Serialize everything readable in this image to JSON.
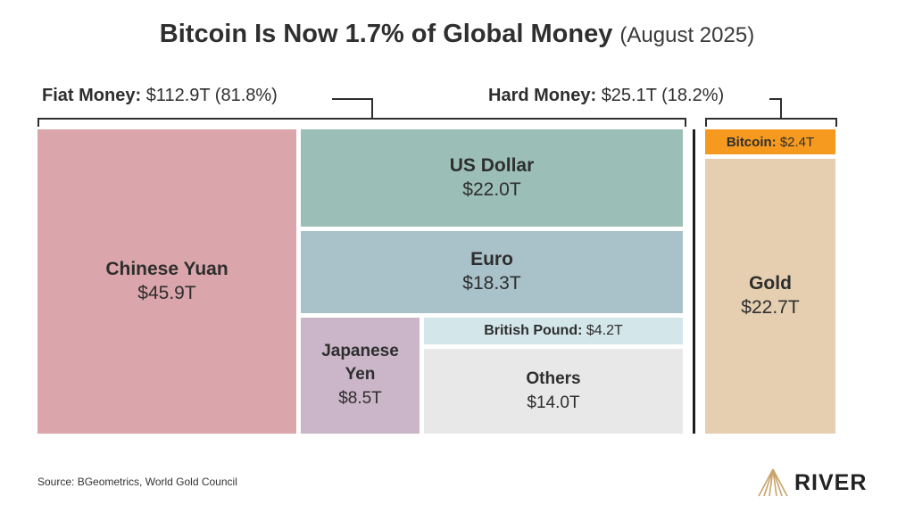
{
  "title": {
    "main": "Bitcoin Is Now 1.7% of Global Money",
    "date": "(August 2025)"
  },
  "groups": {
    "fiat": {
      "label": "Fiat Money:",
      "value": "$112.9T (81.8%)"
    },
    "hard": {
      "label": "Hard Money:",
      "value": "$25.1T (18.2%)"
    }
  },
  "chart_data": {
    "type": "treemap",
    "title": "Bitcoin Is Now 1.7% of Global Money",
    "subtitle": "(August 2025)",
    "unit": "trillion USD",
    "groups": [
      {
        "name": "Fiat Money",
        "total": 112.9,
        "share_pct": 81.8,
        "items": [
          {
            "name": "Chinese Yuan",
            "value": 45.9,
            "label": "$45.9T",
            "color": "#dba6ab"
          },
          {
            "name": "US Dollar",
            "value": 22.0,
            "label": "$22.0T",
            "color": "#9bbfb6"
          },
          {
            "name": "Euro",
            "value": 18.3,
            "label": "$18.3T",
            "color": "#a9c1c9"
          },
          {
            "name": "Japanese Yen",
            "value": 8.5,
            "label": "$8.5T",
            "color": "#cbb6c9"
          },
          {
            "name": "British Pound",
            "value": 4.2,
            "label": "$4.2T",
            "color": "#d3e6ea"
          },
          {
            "name": "Others",
            "value": 14.0,
            "label": "$14.0T",
            "color": "#e8e8e8"
          }
        ]
      },
      {
        "name": "Hard Money",
        "total": 25.1,
        "share_pct": 18.2,
        "items": [
          {
            "name": "Bitcoin",
            "value": 2.4,
            "label": "$2.4T",
            "color": "#f59a1f"
          },
          {
            "name": "Gold",
            "value": 22.7,
            "label": "$22.7T",
            "color": "#e5cfb0"
          }
        ]
      }
    ]
  },
  "tiles": {
    "yuan": {
      "name": "Chinese Yuan",
      "val": "$45.9T"
    },
    "usd": {
      "name": "US Dollar",
      "val": "$22.0T"
    },
    "euro": {
      "name": "Euro",
      "val": "$18.3T"
    },
    "yen": {
      "name1": "Japanese",
      "name2": "Yen",
      "val": "$8.5T"
    },
    "gbp": {
      "name": "British Pound:",
      "val": "$4.2T"
    },
    "others": {
      "name": "Others",
      "val": "$14.0T"
    },
    "btc": {
      "name": "Bitcoin:",
      "val": "$2.4T"
    },
    "gold": {
      "name": "Gold",
      "val": "$22.7T"
    }
  },
  "footer": {
    "source": "Source: BGeometrics, World Gold Council",
    "brand": "RIVER"
  }
}
